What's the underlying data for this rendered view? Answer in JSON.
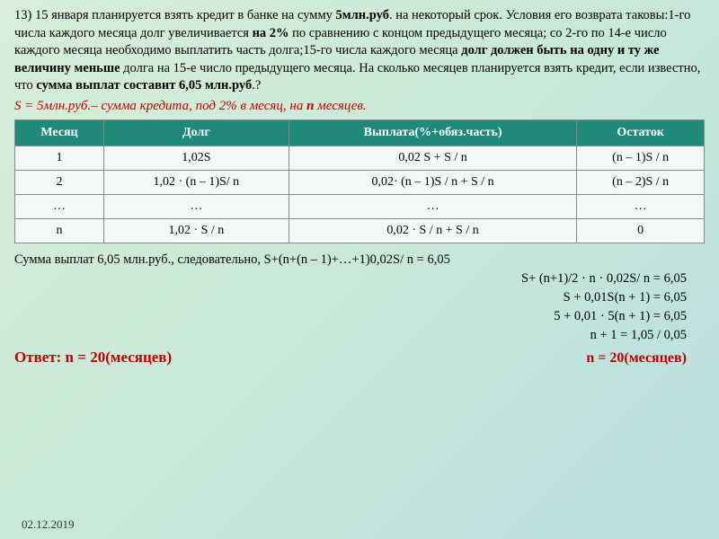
{
  "problem": {
    "number": "13)",
    "text_parts": [
      " 15 января планируется взять кредит в банке на сумму ",
      "5млн.руб",
      ". на некоторый срок. Условия его возврата таковы:1-го числа каждого месяца долг увеличивается ",
      "на 2%",
      " по сравнению с концом предыдущего месяца; со 2-го по 14-е число каждого месяца необходимо выплатить часть долга;15-го числа каждого месяца ",
      "долг должен быть на одну и ту же величину меньше",
      " долга на 15-е число предыдущего месяца. На сколько месяцев планируется взять кредит, если известно, что ",
      "сумма выплат составит 6,05 млн.руб",
      ".?"
    ]
  },
  "given": {
    "prefix": "S = 5млн.руб.",
    "rest": "– сумма кредита, под 2% в месяц, на ",
    "var": "n",
    "suffix": " месяцев."
  },
  "table": {
    "headers": [
      "Месяц",
      "Долг",
      "Выплата(%+обяз.часть)",
      "Остаток"
    ],
    "rows": [
      [
        "1",
        "1,02S",
        "0,02 S + S / n",
        "(n – 1)S / n"
      ],
      [
        "2",
        "1,02 · (n – 1)S/ n",
        "0,02· (n – 1)S / n + S / n",
        "(n – 2)S / n"
      ],
      [
        "…",
        "…",
        "…",
        "…"
      ],
      [
        "n",
        "1,02 ·  S / n",
        "0,02 ·  S / n + S / n",
        "0"
      ]
    ]
  },
  "calc": {
    "intro": "Сумма выплат 6,05 млн.руб., следовательно, S+(n+(n – 1)+…+1)0,02S/ n = 6,05",
    "lines": [
      "S+ (n+1)/2 · n · 0,02S/ n = 6,05",
      "S + 0,01S(n + 1) = 6,05",
      "5 + 0,01 · 5(n + 1) = 6,05",
      "n + 1 = 1,05 / 0,05"
    ]
  },
  "answer": {
    "label": "Ответ: n = 20(месяцев)",
    "final": "n = 20(месяцев)"
  },
  "date": "02.12.2019",
  "style": {
    "accent_red": "#c00000",
    "table_header_bg": "#1f8a7a",
    "table_cell_bg": "#f5f9f5"
  }
}
